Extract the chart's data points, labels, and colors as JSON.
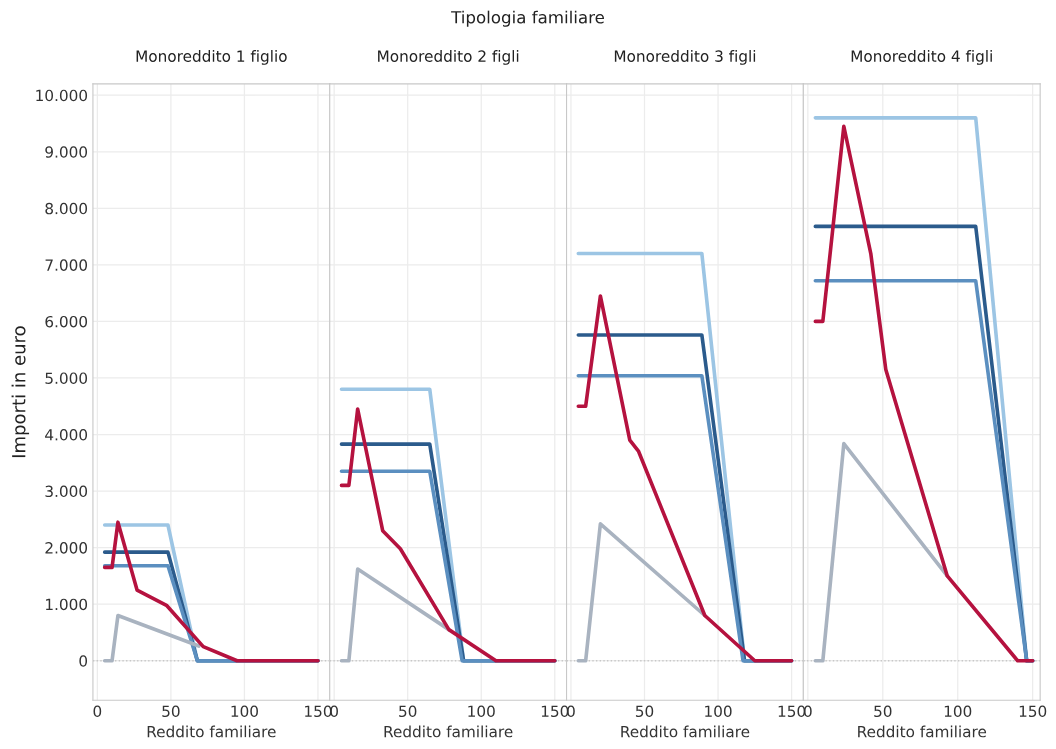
{
  "chart_data": [
    {
      "type": "line",
      "title": "Monoreddito 1 figlio",
      "xlabel": "Reddito familiare",
      "ylabel": "Importi in euro",
      "annotations": [
        "Tipologia familiare"
      ],
      "xlim": [
        -3,
        158
      ],
      "xticks": [
        0,
        50,
        100,
        150
      ],
      "ylim": [
        -700,
        10200
      ],
      "yticks": [
        {
          "value": 0,
          "label": "0"
        },
        {
          "value": 1000,
          "label": "1.000"
        },
        {
          "value": 2000,
          "label": "2.000"
        },
        {
          "value": 3000,
          "label": "3.000"
        },
        {
          "value": 4000,
          "label": "4.000"
        },
        {
          "value": 5000,
          "label": "5.000"
        },
        {
          "value": 6000,
          "label": "6.000"
        },
        {
          "value": 7000,
          "label": "7.000"
        },
        {
          "value": 8000,
          "label": "8.000"
        },
        {
          "value": 9000,
          "label": "9.000"
        },
        {
          "value": 10000,
          "label": "10.000"
        }
      ],
      "grid": true,
      "ref_lines": [
        {
          "axis": "y",
          "value": 0,
          "color": "#c8c8c8",
          "line_style": "dotted"
        }
      ],
      "series": [
        {
          "color": "#9cc5e4",
          "x": [
            5,
            48,
            68,
            150
          ],
          "values": [
            2400,
            2400,
            0,
            0
          ]
        },
        {
          "color": "#2b5b8c",
          "x": [
            5,
            48,
            68,
            150
          ],
          "values": [
            1920,
            1920,
            0,
            0
          ]
        },
        {
          "color": "#5b8fc0",
          "x": [
            5,
            48,
            68,
            150
          ],
          "values": [
            1680,
            1680,
            0,
            0
          ]
        },
        {
          "color": "#a9b3c0",
          "x": [
            5,
            10,
            14,
            69
          ],
          "values": [
            0,
            0,
            800,
            260
          ]
        },
        {
          "color": "#b5123f",
          "x": [
            5,
            10,
            14,
            27,
            47,
            72,
            95,
            150
          ],
          "values": [
            1650,
            1650,
            2450,
            1250,
            980,
            250,
            0,
            0
          ]
        }
      ]
    },
    {
      "type": "line",
      "title": "Monoreddito 2 figli",
      "xlabel": "Reddito familiare",
      "tick_labels": "x",
      "xlim": [
        -3,
        158
      ],
      "xticks": [
        0,
        50,
        100,
        150
      ],
      "ylim": [
        -700,
        10200
      ],
      "yticks": [
        0,
        1000,
        2000,
        3000,
        4000,
        5000,
        6000,
        7000,
        8000,
        9000,
        10000
      ],
      "grid": true,
      "ref_lines": [
        {
          "axis": "y",
          "value": 0,
          "color": "#c8c8c8",
          "line_style": "dotted"
        }
      ],
      "series": [
        {
          "color": "#9cc5e4",
          "x": [
            5,
            65,
            88,
            150
          ],
          "values": [
            4800,
            4800,
            0,
            0
          ]
        },
        {
          "color": "#2b5b8c",
          "x": [
            5,
            65,
            88,
            150
          ],
          "values": [
            3830,
            3830,
            0,
            0
          ]
        },
        {
          "color": "#5b8fc0",
          "x": [
            5,
            65,
            87,
            150
          ],
          "values": [
            3350,
            3350,
            0,
            0
          ]
        },
        {
          "color": "#a9b3c0",
          "x": [
            5,
            10,
            16,
            78
          ],
          "values": [
            0,
            0,
            1620,
            550
          ]
        },
        {
          "color": "#b5123f",
          "x": [
            5,
            10,
            16,
            33,
            45,
            78,
            110,
            150
          ],
          "values": [
            3100,
            3100,
            4450,
            2300,
            1980,
            550,
            0,
            0
          ]
        }
      ]
    },
    {
      "type": "line",
      "title": "Monoreddito 3 figli",
      "xlabel": "Reddito familiare",
      "tick_labels": "x",
      "xlim": [
        -3,
        158
      ],
      "xticks": [
        0,
        50,
        100,
        150
      ],
      "ylim": [
        -700,
        10200
      ],
      "yticks": [
        0,
        1000,
        2000,
        3000,
        4000,
        5000,
        6000,
        7000,
        8000,
        9000,
        10000
      ],
      "grid": true,
      "ref_lines": [
        {
          "axis": "y",
          "value": 0,
          "color": "#c8c8c8",
          "line_style": "dotted"
        }
      ],
      "series": [
        {
          "color": "#9cc5e4",
          "x": [
            5,
            89,
            118,
            150
          ],
          "values": [
            7200,
            7200,
            0,
            0
          ]
        },
        {
          "color": "#2b5b8c",
          "x": [
            5,
            89,
            118,
            150
          ],
          "values": [
            5760,
            5760,
            0,
            0
          ]
        },
        {
          "color": "#5b8fc0",
          "x": [
            5,
            89,
            117,
            150
          ],
          "values": [
            5040,
            5040,
            0,
            0
          ]
        },
        {
          "color": "#a9b3c0",
          "x": [
            5,
            10,
            20,
            91
          ],
          "values": [
            0,
            0,
            2420,
            800
          ]
        },
        {
          "color": "#b5123f",
          "x": [
            5,
            10,
            20,
            40,
            46,
            91,
            125,
            150
          ],
          "values": [
            4500,
            4500,
            6450,
            3900,
            3700,
            800,
            0,
            0
          ]
        }
      ]
    },
    {
      "type": "line",
      "title": "Monoreddito 4 figli",
      "xlabel": "Reddito familiare",
      "tick_labels": "x",
      "xlim": [
        -3,
        155
      ],
      "xticks": [
        0,
        50,
        100,
        150
      ],
      "ylim": [
        -700,
        10200
      ],
      "yticks": [
        0,
        1000,
        2000,
        3000,
        4000,
        5000,
        6000,
        7000,
        8000,
        9000,
        10000
      ],
      "grid": true,
      "ref_lines": [
        {
          "axis": "y",
          "value": 0,
          "color": "#c8c8c8",
          "line_style": "dotted"
        }
      ],
      "series": [
        {
          "color": "#9cc5e4",
          "x": [
            5,
            112,
            146,
            150
          ],
          "values": [
            9600,
            9600,
            0,
            0
          ]
        },
        {
          "color": "#2b5b8c",
          "x": [
            5,
            112,
            146,
            150
          ],
          "values": [
            7680,
            7680,
            0,
            0
          ]
        },
        {
          "color": "#5b8fc0",
          "x": [
            5,
            112,
            146,
            150
          ],
          "values": [
            6720,
            6720,
            0,
            0
          ]
        },
        {
          "color": "#a9b3c0",
          "x": [
            5,
            10,
            24,
            93
          ],
          "values": [
            0,
            0,
            3840,
            1500
          ]
        },
        {
          "color": "#b5123f",
          "x": [
            5,
            10,
            24,
            42,
            52,
            93,
            140,
            150
          ],
          "values": [
            6000,
            6000,
            9450,
            7200,
            5150,
            1500,
            0,
            0
          ]
        }
      ]
    }
  ]
}
